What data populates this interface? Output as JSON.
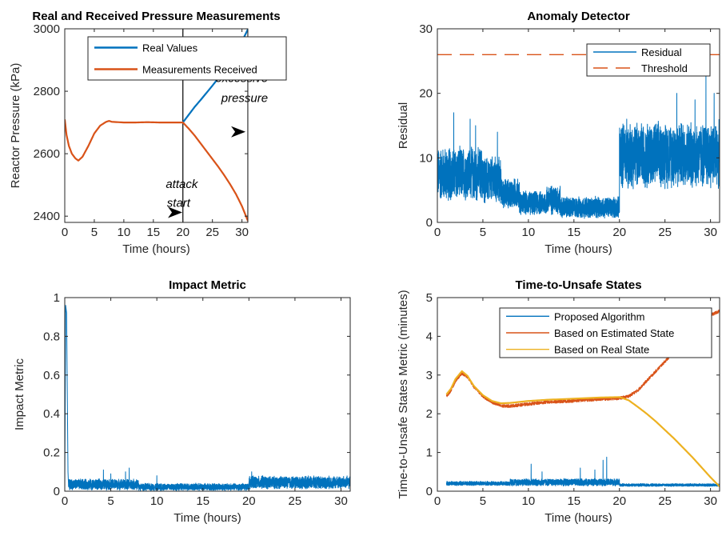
{
  "chart_data": [
    {
      "type": "line",
      "title": "Real and Received Pressure Measurements",
      "xlabel": "Time (hours)",
      "ylabel": "Reactor Pressure (kPa)",
      "xlim": [
        0,
        31
      ],
      "ylim": [
        2380,
        3000
      ],
      "xticks": [
        0,
        5,
        10,
        15,
        20,
        25,
        30
      ],
      "yticks": [
        2400,
        2600,
        2800,
        3000
      ],
      "legend": "top-left",
      "series": [
        {
          "name": "Real Values",
          "color": "#0072BD",
          "points": [
            [
              20.0,
              2700
            ],
            [
              21,
              2725
            ],
            [
              22,
              2750
            ],
            [
              23,
              2772
            ],
            [
              24,
              2795
            ],
            [
              25,
              2818
            ],
            [
              26,
              2842
            ],
            [
              27,
              2868
            ],
            [
              28,
              2895
            ],
            [
              29,
              2925
            ],
            [
              30,
              2960
            ],
            [
              31,
              2998
            ]
          ]
        },
        {
          "name": "Measurements Received",
          "color": "#D95319",
          "points": [
            [
              0,
              2710
            ],
            [
              0.3,
              2660
            ],
            [
              0.7,
              2625
            ],
            [
              1.2,
              2600
            ],
            [
              1.8,
              2585
            ],
            [
              2.3,
              2578
            ],
            [
              3,
              2590
            ],
            [
              4,
              2625
            ],
            [
              5,
              2665
            ],
            [
              6,
              2690
            ],
            [
              7,
              2702
            ],
            [
              7.5,
              2705
            ],
            [
              8,
              2702
            ],
            [
              10,
              2700
            ],
            [
              12,
              2700
            ],
            [
              14,
              2701
            ],
            [
              16,
              2700
            ],
            [
              18,
              2700
            ],
            [
              20,
              2700
            ],
            [
              21,
              2680
            ],
            [
              22,
              2658
            ],
            [
              23,
              2633
            ],
            [
              24,
              2608
            ],
            [
              25,
              2583
            ],
            [
              26,
              2558
            ],
            [
              27,
              2531
            ],
            [
              28,
              2502
            ],
            [
              29,
              2470
            ],
            [
              30,
              2432
            ],
            [
              31,
              2385
            ]
          ]
        }
      ],
      "annotations": [
        {
          "text": "excessive",
          "x": 25.5,
          "y": 2830,
          "arrow": false
        },
        {
          "text": "pressure",
          "x": 26.5,
          "y": 2765,
          "arrow": false
        },
        {
          "text": "attack",
          "x": 17.1,
          "y": 2490,
          "arrow": false
        },
        {
          "text": "start",
          "x": 17.3,
          "y": 2430,
          "arrow": false
        }
      ],
      "arrows": [
        [
          30.6,
          2670
        ],
        [
          19.9,
          2412
        ]
      ],
      "vlines": [
        20,
        31
      ]
    },
    {
      "type": "line",
      "title": "Anomaly Detector",
      "xlabel": "Time (hours)",
      "ylabel": "Residual",
      "xlim": [
        0,
        31
      ],
      "ylim": [
        0,
        30
      ],
      "xticks": [
        0,
        5,
        10,
        15,
        20,
        25,
        30
      ],
      "yticks": [
        0,
        10,
        20,
        30
      ],
      "legend": "top-right",
      "series": [
        {
          "name": "Residual",
          "color": "#0072BD",
          "style": "noisy",
          "segments": [
            {
              "x": [
                0,
                5
              ],
              "mean": 7.5,
              "amp": 4.5
            },
            {
              "x": [
                5,
                7
              ],
              "mean": 6.5,
              "amp": 4.0
            },
            {
              "x": [
                7,
                9
              ],
              "mean": 4.5,
              "amp": 2.5
            },
            {
              "x": [
                9,
                12
              ],
              "mean": 3.0,
              "amp": 2.0
            },
            {
              "x": [
                12,
                13.5
              ],
              "mean": 3.5,
              "amp": 2.5
            },
            {
              "x": [
                13.5,
                20
              ],
              "mean": 2.3,
              "amp": 1.8
            },
            {
              "x": [
                20,
                31
              ],
              "mean": 10.5,
              "amp": 5.5
            }
          ],
          "spikes": [
            [
              1.8,
              17
            ],
            [
              3.6,
              16
            ],
            [
              4.2,
              15
            ],
            [
              6.6,
              14
            ],
            [
              20.8,
              16
            ],
            [
              26.3,
              20
            ],
            [
              28.3,
              19
            ],
            [
              29.5,
              23
            ],
            [
              30.4,
              20
            ]
          ]
        },
        {
          "name": "Threshold",
          "color": "#D95319",
          "dashed": true,
          "points": [
            [
              0,
              26
            ],
            [
              31,
              26
            ]
          ]
        }
      ]
    },
    {
      "type": "line",
      "title": "Impact Metric",
      "xlabel": "Time (hours)",
      "ylabel": "Impact Metric",
      "xlim": [
        0,
        31
      ],
      "ylim": [
        0,
        1
      ],
      "xticks": [
        0,
        5,
        10,
        15,
        20,
        25,
        30
      ],
      "yticks": [
        0,
        0.2,
        0.4,
        0.6,
        0.8,
        1
      ],
      "series": [
        {
          "name": "",
          "color": "#0072BD",
          "style": "noisy",
          "initial_spike": [
            [
              0.0,
              0.0
            ],
            [
              0.1,
              0.96
            ],
            [
              0.2,
              0.92
            ],
            [
              0.35,
              0.1
            ]
          ],
          "segments": [
            {
              "x": [
                0.4,
                8
              ],
              "mean": 0.035,
              "amp": 0.03
            },
            {
              "x": [
                8,
                20
              ],
              "mean": 0.022,
              "amp": 0.02
            },
            {
              "x": [
                20,
                31
              ],
              "mean": 0.045,
              "amp": 0.035
            }
          ],
          "spikes": [
            [
              4.2,
              0.11
            ],
            [
              5.0,
              0.09
            ],
            [
              6.6,
              0.1
            ],
            [
              7.0,
              0.12
            ],
            [
              10.0,
              0.08
            ],
            [
              20.3,
              0.1
            ],
            [
              21.5,
              0.08
            ]
          ]
        }
      ]
    },
    {
      "type": "line",
      "title": "Time-to-Unsafe States",
      "xlabel": "Time (hours)",
      "ylabel": "Time-to-Unsafe States Metric (minutes)",
      "xlim": [
        0,
        31
      ],
      "ylim": [
        0,
        5
      ],
      "xticks": [
        0,
        5,
        10,
        15,
        20,
        25,
        30
      ],
      "yticks": [
        0,
        1,
        2,
        3,
        4,
        5
      ],
      "legend": "top-right",
      "series": [
        {
          "name": "Proposed Algorithm",
          "color": "#0072BD",
          "style": "noisy",
          "segments": [
            {
              "x": [
                1,
                8
              ],
              "mean": 0.2,
              "amp": 0.06
            },
            {
              "x": [
                8,
                20
              ],
              "mean": 0.23,
              "amp": 0.1
            },
            {
              "x": [
                20,
                31
              ],
              "mean": 0.16,
              "amp": 0.04
            }
          ],
          "spikes": [
            [
              10.3,
              0.7
            ],
            [
              11.5,
              0.5
            ],
            [
              15.7,
              0.6
            ],
            [
              17.3,
              0.55
            ],
            [
              18.2,
              0.8
            ],
            [
              18.6,
              0.88
            ]
          ]
        },
        {
          "name": "Based on Estimated State",
          "color": "#D95319",
          "style": "noisy",
          "noise": 0.04,
          "points": [
            [
              1,
              2.45
            ],
            [
              1.5,
              2.6
            ],
            [
              2,
              2.85
            ],
            [
              2.7,
              3.05
            ],
            [
              3.3,
              2.95
            ],
            [
              4,
              2.7
            ],
            [
              5,
              2.45
            ],
            [
              6,
              2.3
            ],
            [
              7,
              2.2
            ],
            [
              8,
              2.2
            ],
            [
              10,
              2.25
            ],
            [
              12,
              2.3
            ],
            [
              14,
              2.32
            ],
            [
              16,
              2.35
            ],
            [
              18,
              2.38
            ],
            [
              20,
              2.4
            ],
            [
              21,
              2.45
            ],
            [
              22,
              2.6
            ],
            [
              23,
              2.85
            ],
            [
              24,
              3.1
            ],
            [
              25,
              3.35
            ],
            [
              26,
              3.6
            ],
            [
              27,
              3.85
            ],
            [
              28,
              4.1
            ],
            [
              29,
              4.35
            ],
            [
              30,
              4.55
            ],
            [
              31,
              4.65
            ]
          ]
        },
        {
          "name": "Based on Real State",
          "color": "#EDB120",
          "points": [
            [
              1,
              2.5
            ],
            [
              1.5,
              2.65
            ],
            [
              2,
              2.9
            ],
            [
              2.7,
              3.1
            ],
            [
              3.3,
              2.98
            ],
            [
              4,
              2.72
            ],
            [
              5,
              2.48
            ],
            [
              6,
              2.33
            ],
            [
              7,
              2.27
            ],
            [
              8,
              2.28
            ],
            [
              10,
              2.33
            ],
            [
              12,
              2.36
            ],
            [
              14,
              2.38
            ],
            [
              16,
              2.4
            ],
            [
              18,
              2.42
            ],
            [
              20,
              2.43
            ],
            [
              21,
              2.35
            ],
            [
              22,
              2.18
            ],
            [
              23,
              2.0
            ],
            [
              24,
              1.8
            ],
            [
              25,
              1.58
            ],
            [
              26,
              1.36
            ],
            [
              27,
              1.12
            ],
            [
              28,
              0.88
            ],
            [
              29,
              0.62
            ],
            [
              30,
              0.36
            ],
            [
              31,
              0.12
            ]
          ]
        }
      ]
    }
  ]
}
